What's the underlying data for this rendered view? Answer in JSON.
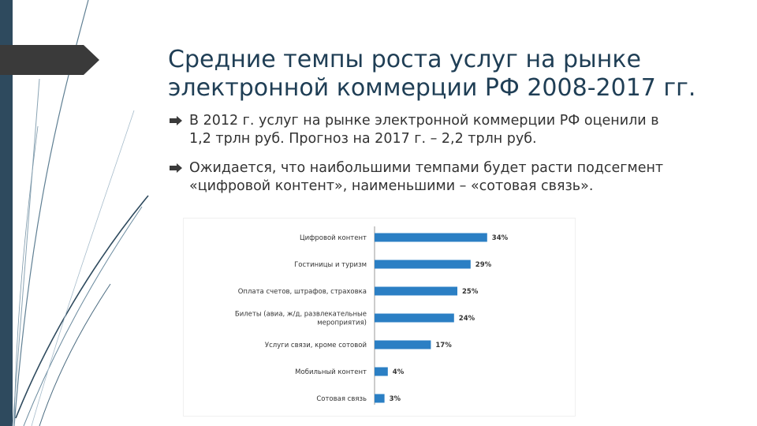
{
  "slide": {
    "title_line1": "Средние темпы роста услуг на рынке",
    "title_line2": "электронной коммерции РФ 2008-2017 гг.",
    "bullets": [
      {
        "line1": "В 2012 г. услуг на рынке электронной коммерции РФ оценили в",
        "line2": "1,2 трлн руб. Прогноз на 2017 г. – 2,2 трлн руб."
      },
      {
        "line1": "Ожидается, что наибольшими темпами будет расти подсегмент",
        "line2": "«цифровой контент», наименьшими – «сотовая связь»."
      }
    ],
    "colors": {
      "accent_dark": "#2e4a5e",
      "title": "#1f3e55",
      "bar": "#2b7fc4"
    }
  },
  "chart_data": {
    "type": "bar",
    "orientation": "horizontal",
    "categories": [
      [
        "Цифровой контент"
      ],
      [
        "Гостиницы и туризм"
      ],
      [
        "Оплата счетов, штрафов, страховка"
      ],
      [
        "Билеты (авиа, ж/д, развлекательные",
        "мероприятия)"
      ],
      [
        "Услуги связи, кроме сотовой"
      ],
      [
        "Мобильный контент"
      ],
      [
        "Сотовая связь"
      ]
    ],
    "values": [
      34,
      29,
      25,
      24,
      17,
      4,
      3
    ],
    "value_labels": [
      "34%",
      "29%",
      "25%",
      "24%",
      "17%",
      "4%",
      "3%"
    ],
    "unit": "%",
    "xlim": [
      0,
      40
    ]
  }
}
